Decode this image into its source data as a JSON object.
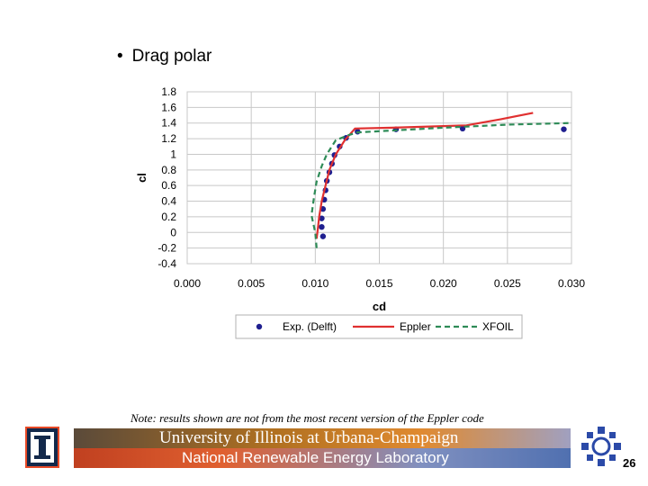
{
  "slide": {
    "bullet_text": "Drag polar",
    "note": "Note: results shown are not from the most recent version of the Eppler code",
    "footer_line1": "University of Illinois at Urbana-Champaign",
    "footer_line2": "National Renewable Energy Laboratory",
    "page_number": "26",
    "logo_letter": "I"
  },
  "chart_data": {
    "type": "scatter",
    "xlabel": "cd",
    "ylabel": "cl",
    "xlim": [
      0.0,
      0.03
    ],
    "ylim": [
      -0.4,
      1.8
    ],
    "xticks": [
      "0.000",
      "0.005",
      "0.010",
      "0.015",
      "0.020",
      "0.025",
      "0.030"
    ],
    "yticks": [
      "1.8",
      "1.6",
      "1.4",
      "1.2",
      "1",
      "0.8",
      "0.6",
      "0.4",
      "0.2",
      "0",
      "-0.2",
      "-0.4"
    ],
    "grid": true,
    "legend_position": "bottom",
    "series": [
      {
        "name": "Exp. (Delft)",
        "style": "markers",
        "color": "#1f1f8f",
        "points": [
          [
            0.0106,
            -0.05
          ],
          [
            0.0105,
            0.07
          ],
          [
            0.0105,
            0.18
          ],
          [
            0.0106,
            0.3
          ],
          [
            0.0107,
            0.42
          ],
          [
            0.0108,
            0.54
          ],
          [
            0.0109,
            0.66
          ],
          [
            0.0111,
            0.77
          ],
          [
            0.0113,
            0.88
          ],
          [
            0.0115,
            0.99
          ],
          [
            0.0119,
            1.1
          ],
          [
            0.0124,
            1.21
          ],
          [
            0.0133,
            1.29
          ],
          [
            0.0163,
            1.32
          ],
          [
            0.0215,
            1.33
          ],
          [
            0.0294,
            1.32
          ]
        ]
      },
      {
        "name": "Eppler",
        "style": "solid",
        "color": "#e03030",
        "points": [
          [
            0.0101,
            -0.08
          ],
          [
            0.0102,
            0.05
          ],
          [
            0.0103,
            0.2
          ],
          [
            0.0105,
            0.4
          ],
          [
            0.0108,
            0.6
          ],
          [
            0.0111,
            0.8
          ],
          [
            0.0116,
            1.0
          ],
          [
            0.0123,
            1.18
          ],
          [
            0.0131,
            1.33
          ],
          [
            0.016,
            1.34
          ],
          [
            0.0218,
            1.37
          ],
          [
            0.0245,
            1.45
          ],
          [
            0.027,
            1.53
          ]
        ]
      },
      {
        "name": "XFOIL",
        "style": "dashed",
        "color": "#2e8b57",
        "points": [
          [
            0.0101,
            -0.2
          ],
          [
            0.01,
            0.0
          ],
          [
            0.0097,
            0.22
          ],
          [
            0.0099,
            0.45
          ],
          [
            0.0101,
            0.65
          ],
          [
            0.0105,
            0.85
          ],
          [
            0.0109,
            1.0
          ],
          [
            0.0116,
            1.18
          ],
          [
            0.0125,
            1.24
          ],
          [
            0.0133,
            1.28
          ],
          [
            0.0155,
            1.3
          ],
          [
            0.02,
            1.34
          ],
          [
            0.025,
            1.38
          ],
          [
            0.03,
            1.4
          ]
        ]
      }
    ]
  }
}
